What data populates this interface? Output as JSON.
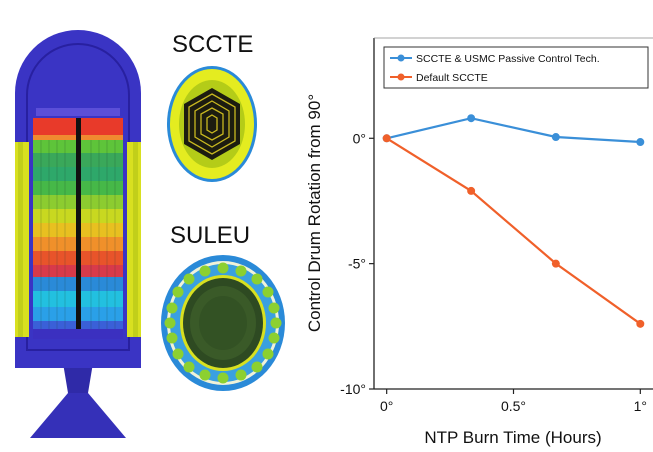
{
  "figure": {
    "core_labels": [
      "SCCTE",
      "SULEU"
    ]
  },
  "chart_data": {
    "type": "line",
    "title": "",
    "xlabel": "NTP Burn Time (Hours)",
    "ylabel": "Control Drum Rotation from 90°",
    "x": [
      0,
      0.333,
      0.667,
      1.0
    ],
    "xlim": [
      -0.05,
      1.05
    ],
    "ylim": [
      -10,
      4
    ],
    "x_ticks": [
      {
        "value": 0,
        "label": "0°"
      },
      {
        "value": 0.5,
        "label": "0.5°"
      },
      {
        "value": 1,
        "label": "1°"
      }
    ],
    "y_ticks": [
      {
        "value": 0,
        "label": "0°"
      },
      {
        "value": -5,
        "label": "-5°"
      },
      {
        "value": -10,
        "label": "-10°"
      }
    ],
    "grid": false,
    "legend_position": "top-right",
    "series": [
      {
        "name": "SCCTE & USMC Passive Control Tech.",
        "color": "#3a8fd8",
        "values": [
          0,
          0.8,
          0.05,
          -0.15
        ]
      },
      {
        "name": "Default SCCTE",
        "color": "#f0602a",
        "values": [
          0,
          -2.1,
          -5.0,
          -7.4
        ]
      }
    ]
  }
}
